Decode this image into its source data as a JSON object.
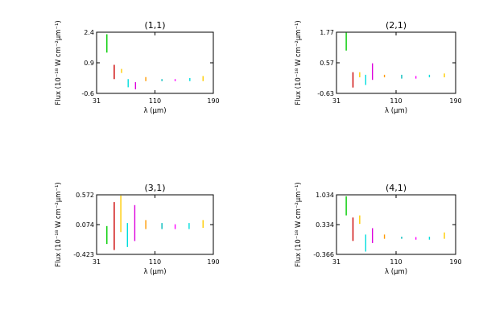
{
  "chart_data": [
    {
      "type": "scatter",
      "title": "(1,1)",
      "xlabel": "λ (μm)",
      "ylabel": "Flux (10⁻¹⁸ W cm⁻²μm⁻¹)",
      "xlim": [
        31,
        190
      ],
      "ylim": [
        -0.6,
        2.4
      ],
      "xticks": [
        "31",
        "110",
        "190"
      ],
      "yticks": [
        "-0.6",
        "0.9",
        "2.4"
      ],
      "grid": false,
      "legend": "none",
      "segments": [
        {
          "x": 45,
          "ymin": 1.4,
          "ymax": 2.3,
          "color": "#00cc00"
        },
        {
          "x": 55,
          "ymin": 0.1,
          "ymax": 0.8,
          "color": "#cc0000"
        },
        {
          "x": 65,
          "ymin": 0.4,
          "ymax": 0.6,
          "color": "#ffcc00"
        },
        {
          "x": 74,
          "ymin": -0.3,
          "ymax": 0.1,
          "color": "#00dddd"
        },
        {
          "x": 84,
          "ymin": -0.4,
          "ymax": -0.05,
          "color": "#dd00dd"
        },
        {
          "x": 98,
          "ymin": 0.0,
          "ymax": 0.2,
          "color": "#ff9900"
        },
        {
          "x": 120,
          "ymin": 0.0,
          "ymax": 0.1,
          "color": "#00bbbb"
        },
        {
          "x": 138,
          "ymin": 0.0,
          "ymax": 0.1,
          "color": "#ff00ff"
        },
        {
          "x": 158,
          "ymin": 0.0,
          "ymax": 0.15,
          "color": "#00dddd"
        },
        {
          "x": 176,
          "ymin": 0.0,
          "ymax": 0.25,
          "color": "#ffcc00"
        }
      ]
    },
    {
      "type": "scatter",
      "title": "(2,1)",
      "xlabel": "λ (μm)",
      "ylabel": "Flux (10⁻¹⁸ W cm⁻²μm⁻¹)",
      "xlim": [
        31,
        190
      ],
      "ylim": [
        -0.63,
        1.77
      ],
      "xticks": [
        "31",
        "110",
        "190"
      ],
      "yticks": [
        "-0.63",
        "0.57",
        "1.77"
      ],
      "grid": false,
      "legend": "none",
      "segments": [
        {
          "x": 44,
          "ymin": 1.05,
          "ymax": 1.75,
          "color": "#00cc00"
        },
        {
          "x": 53,
          "ymin": -0.4,
          "ymax": 0.2,
          "color": "#cc0000"
        },
        {
          "x": 62,
          "ymin": 0.0,
          "ymax": 0.2,
          "color": "#ffcc00"
        },
        {
          "x": 70,
          "ymin": -0.3,
          "ymax": 0.1,
          "color": "#00dddd"
        },
        {
          "x": 79,
          "ymin": -0.1,
          "ymax": 0.55,
          "color": "#dd00dd"
        },
        {
          "x": 95,
          "ymin": 0.0,
          "ymax": 0.1,
          "color": "#ff9900"
        },
        {
          "x": 118,
          "ymin": -0.05,
          "ymax": 0.1,
          "color": "#00bbbb"
        },
        {
          "x": 137,
          "ymin": -0.05,
          "ymax": 0.05,
          "color": "#ff00ff"
        },
        {
          "x": 155,
          "ymin": 0.0,
          "ymax": 0.1,
          "color": "#00dddd"
        },
        {
          "x": 175,
          "ymin": 0.0,
          "ymax": 0.15,
          "color": "#ffcc00"
        }
      ]
    },
    {
      "type": "scatter",
      "title": "(3,1)",
      "xlabel": "λ (μm)",
      "ylabel": "Flux (10⁻¹⁸ W cm⁻²μm⁻¹)",
      "xlim": [
        31,
        190
      ],
      "ylim": [
        -0.423,
        0.572
      ],
      "xticks": [
        "31",
        "110",
        "190"
      ],
      "yticks": [
        "-0.423",
        "0.074",
        "0.572"
      ],
      "grid": false,
      "legend": "none",
      "segments": [
        {
          "x": 45,
          "ymin": -0.25,
          "ymax": 0.05,
          "color": "#00cc00"
        },
        {
          "x": 55,
          "ymin": -0.35,
          "ymax": 0.45,
          "color": "#cc0000"
        },
        {
          "x": 64,
          "ymin": -0.05,
          "ymax": 0.56,
          "color": "#ffcc00"
        },
        {
          "x": 73,
          "ymin": -0.3,
          "ymax": 0.1,
          "color": "#00dddd"
        },
        {
          "x": 83,
          "ymin": -0.2,
          "ymax": 0.4,
          "color": "#dd00dd"
        },
        {
          "x": 98,
          "ymin": 0.0,
          "ymax": 0.15,
          "color": "#ff9900"
        },
        {
          "x": 120,
          "ymin": 0.0,
          "ymax": 0.1,
          "color": "#00bbbb"
        },
        {
          "x": 138,
          "ymin": 0.0,
          "ymax": 0.08,
          "color": "#ff00ff"
        },
        {
          "x": 157,
          "ymin": 0.0,
          "ymax": 0.1,
          "color": "#00dddd"
        },
        {
          "x": 176,
          "ymin": 0.02,
          "ymax": 0.15,
          "color": "#ffcc00"
        }
      ]
    },
    {
      "type": "scatter",
      "title": "(4,1)",
      "xlabel": "λ (μm)",
      "ylabel": "Flux (10⁻¹⁸ W cm⁻²μm⁻¹)",
      "xlim": [
        31,
        190
      ],
      "ylim": [
        -0.366,
        1.034
      ],
      "xticks": [
        "31",
        "110",
        "190"
      ],
      "yticks": [
        "-0.366",
        "0.334",
        "1.034"
      ],
      "grid": false,
      "legend": "none",
      "segments": [
        {
          "x": 44,
          "ymin": 0.55,
          "ymax": 1.0,
          "color": "#00cc00"
        },
        {
          "x": 53,
          "ymin": -0.05,
          "ymax": 0.5,
          "color": "#cc0000"
        },
        {
          "x": 62,
          "ymin": 0.35,
          "ymax": 0.55,
          "color": "#ffcc00"
        },
        {
          "x": 70,
          "ymin": -0.3,
          "ymax": 0.1,
          "color": "#00dddd"
        },
        {
          "x": 79,
          "ymin": -0.1,
          "ymax": 0.25,
          "color": "#dd00dd"
        },
        {
          "x": 95,
          "ymin": 0.0,
          "ymax": 0.1,
          "color": "#ff9900"
        },
        {
          "x": 118,
          "ymin": 0.0,
          "ymax": 0.05,
          "color": "#00bbbb"
        },
        {
          "x": 137,
          "ymin": -0.02,
          "ymax": 0.04,
          "color": "#ff00ff"
        },
        {
          "x": 155,
          "ymin": -0.02,
          "ymax": 0.05,
          "color": "#00dddd"
        },
        {
          "x": 175,
          "ymin": 0.0,
          "ymax": 0.15,
          "color": "#ffcc00"
        }
      ]
    }
  ]
}
